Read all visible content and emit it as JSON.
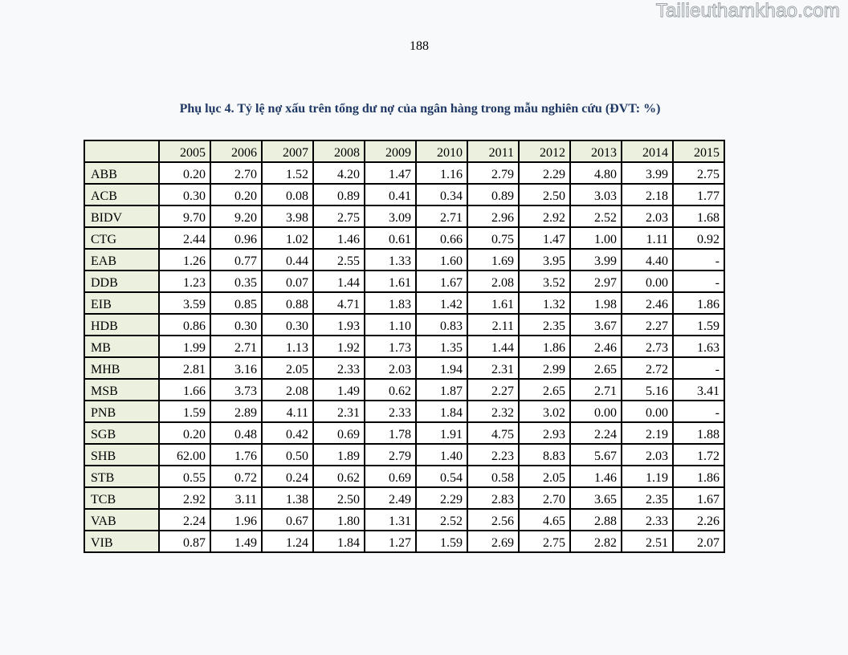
{
  "watermark": "Tailieuthamkhao.com",
  "page_number": "188",
  "caption": "Phụ lục 4. Tỷ lệ nợ xấu trên tổng dư nợ của ngân hàng trong mẫu nghiên cứu (ĐVT: %)",
  "table": {
    "corner": "",
    "years": [
      "2005",
      "2006",
      "2007",
      "2008",
      "2009",
      "2010",
      "2011",
      "2012",
      "2013",
      "2014",
      "2015"
    ],
    "rows": [
      {
        "bank": "ABB",
        "values": [
          "0.20",
          "2.70",
          "1.52",
          "4.20",
          "1.47",
          "1.16",
          "2.79",
          "2.29",
          "4.80",
          "3.99",
          "2.75"
        ]
      },
      {
        "bank": "ACB",
        "values": [
          "0.30",
          "0.20",
          "0.08",
          "0.89",
          "0.41",
          "0.34",
          "0.89",
          "2.50",
          "3.03",
          "2.18",
          "1.77"
        ]
      },
      {
        "bank": "BIDV",
        "values": [
          "9.70",
          "9.20",
          "3.98",
          "2.75",
          "3.09",
          "2.71",
          "2.96",
          "2.92",
          "2.52",
          "2.03",
          "1.68"
        ]
      },
      {
        "bank": "CTG",
        "values": [
          "2.44",
          "0.96",
          "1.02",
          "1.46",
          "0.61",
          "0.66",
          "0.75",
          "1.47",
          "1.00",
          "1.11",
          "0.92"
        ]
      },
      {
        "bank": "EAB",
        "values": [
          "1.26",
          "0.77",
          "0.44",
          "2.55",
          "1.33",
          "1.60",
          "1.69",
          "3.95",
          "3.99",
          "4.40",
          "-"
        ]
      },
      {
        "bank": "DDB",
        "values": [
          "1.23",
          "0.35",
          "0.07",
          "1.44",
          "1.61",
          "1.67",
          "2.08",
          "3.52",
          "2.97",
          "0.00",
          "-"
        ]
      },
      {
        "bank": "EIB",
        "values": [
          "3.59",
          "0.85",
          "0.88",
          "4.71",
          "1.83",
          "1.42",
          "1.61",
          "1.32",
          "1.98",
          "2.46",
          "1.86"
        ]
      },
      {
        "bank": "HDB",
        "values": [
          "0.86",
          "0.30",
          "0.30",
          "1.93",
          "1.10",
          "0.83",
          "2.11",
          "2.35",
          "3.67",
          "2.27",
          "1.59"
        ]
      },
      {
        "bank": "MB",
        "values": [
          "1.99",
          "2.71",
          "1.13",
          "1.92",
          "1.73",
          "1.35",
          "1.44",
          "1.86",
          "2.46",
          "2.73",
          "1.63"
        ]
      },
      {
        "bank": "MHB",
        "values": [
          "2.81",
          "3.16",
          "2.05",
          "2.33",
          "2.03",
          "1.94",
          "2.31",
          "2.99",
          "2.65",
          "2.72",
          "-"
        ]
      },
      {
        "bank": "MSB",
        "values": [
          "1.66",
          "3.73",
          "2.08",
          "1.49",
          "0.62",
          "1.87",
          "2.27",
          "2.65",
          "2.71",
          "5.16",
          "3.41"
        ]
      },
      {
        "bank": "PNB",
        "values": [
          "1.59",
          "2.89",
          "4.11",
          "2.31",
          "2.33",
          "1.84",
          "2.32",
          "3.02",
          "0.00",
          "0.00",
          "-"
        ]
      },
      {
        "bank": "SGB",
        "values": [
          "0.20",
          "0.48",
          "0.42",
          "0.69",
          "1.78",
          "1.91",
          "4.75",
          "2.93",
          "2.24",
          "2.19",
          "1.88"
        ]
      },
      {
        "bank": "SHB",
        "values": [
          "62.00",
          "1.76",
          "0.50",
          "1.89",
          "2.79",
          "1.40",
          "2.23",
          "8.83",
          "5.67",
          "2.03",
          "1.72"
        ]
      },
      {
        "bank": "STB",
        "values": [
          "0.55",
          "0.72",
          "0.24",
          "0.62",
          "0.69",
          "0.54",
          "0.58",
          "2.05",
          "1.46",
          "1.19",
          "1.86"
        ]
      },
      {
        "bank": "TCB",
        "values": [
          "2.92",
          "3.11",
          "1.38",
          "2.50",
          "2.49",
          "2.29",
          "2.83",
          "2.70",
          "3.65",
          "2.35",
          "1.67"
        ]
      },
      {
        "bank": "VAB",
        "values": [
          "2.24",
          "1.96",
          "0.67",
          "1.80",
          "1.31",
          "2.52",
          "2.56",
          "4.65",
          "2.88",
          "2.33",
          "2.26"
        ]
      },
      {
        "bank": "VIB",
        "values": [
          "0.87",
          "1.49",
          "1.24",
          "1.84",
          "1.27",
          "1.59",
          "2.69",
          "2.75",
          "2.82",
          "2.51",
          "2.07"
        ]
      }
    ]
  },
  "colors": {
    "label_fill": "#ebf1de",
    "caption_text": "#1f3864",
    "border": "#000000"
  }
}
